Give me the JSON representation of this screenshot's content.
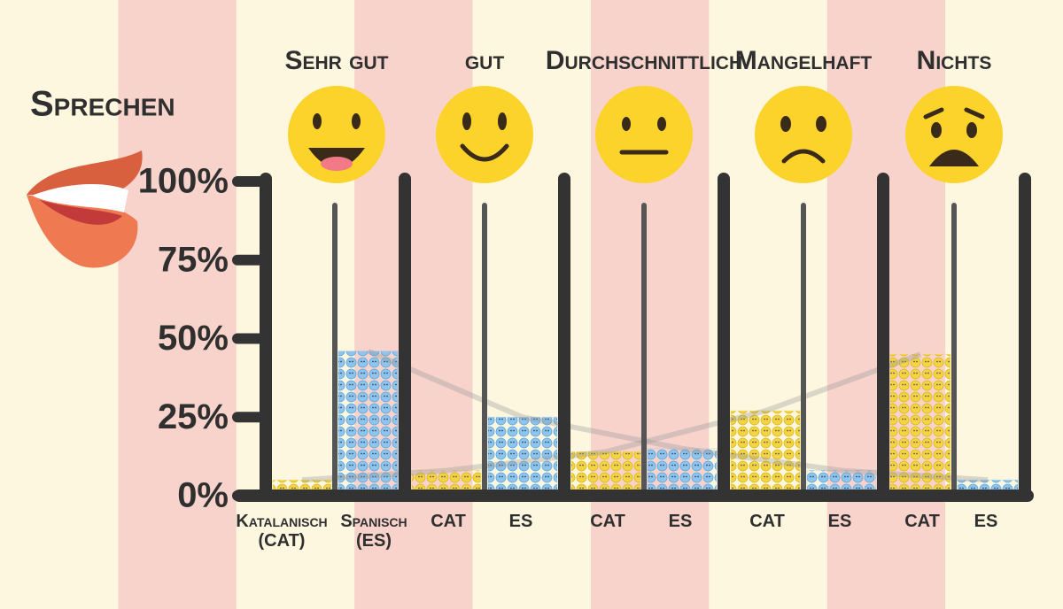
{
  "chart_data": {
    "type": "bar",
    "title": "Sprechen",
    "categories": [
      "Sehr gut",
      "gut",
      "Durchschnittlich",
      "Mangelhaft",
      "Nichts"
    ],
    "group_labels": [
      [
        "Katalanisch (CAT)",
        "Spanisch (ES)"
      ],
      [
        "CAT",
        "ES"
      ],
      [
        "CAT",
        "ES"
      ],
      [
        "CAT",
        "ES"
      ],
      [
        "CAT",
        "ES"
      ]
    ],
    "series": [
      {
        "name": "CAT",
        "color": "#f5d442",
        "values": [
          5,
          8,
          14,
          27,
          45
        ]
      },
      {
        "name": "ES",
        "color": "#8ec5ee",
        "values": [
          46,
          25,
          15,
          8,
          5
        ]
      }
    ],
    "ylim": [
      0,
      100
    ],
    "yticks": [
      {
        "value": 0,
        "label": "0%"
      },
      {
        "value": 25,
        "label": "25%"
      },
      {
        "value": 50,
        "label": "50%"
      },
      {
        "value": 75,
        "label": "75%"
      },
      {
        "value": 100,
        "label": "100%"
      }
    ]
  }
}
